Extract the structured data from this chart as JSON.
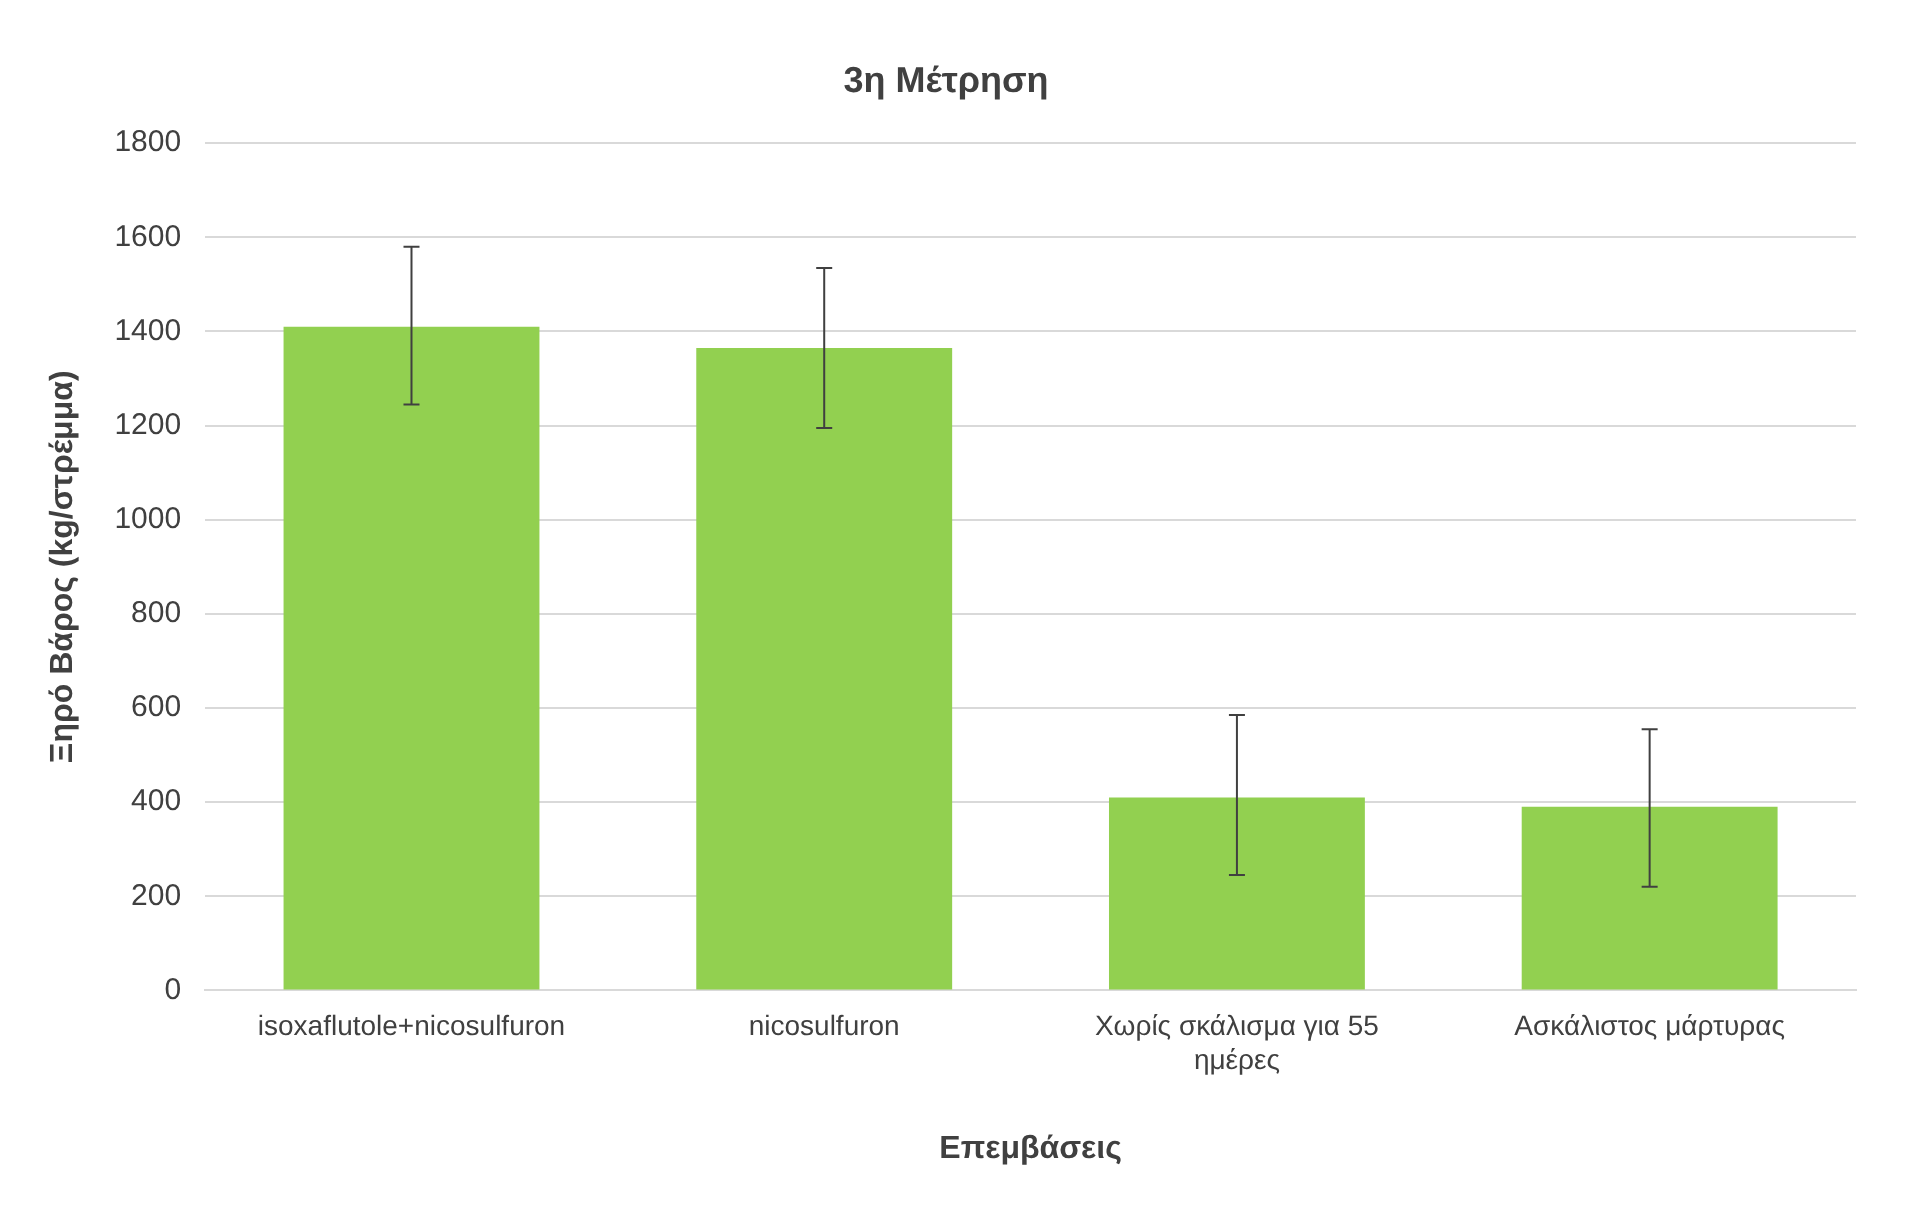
{
  "chart_data": {
    "type": "bar",
    "title": "3η Μέτρηση",
    "xlabel": "Επεμβάσεις",
    "ylabel": "Ξηρό Βάρος (kg/στρέμμα)",
    "categories": [
      "isoxaflutole+nicosulfuron",
      "nicosulfuron",
      "Χωρίς σκάλισμα για 55 ημέρες",
      "Ασκάλιστος μάρτυρας"
    ],
    "values": [
      1410,
      1365,
      410,
      390
    ],
    "errors": [
      [
        1245,
        1580
      ],
      [
        1195,
        1535
      ],
      [
        245,
        585
      ],
      [
        220,
        555
      ]
    ],
    "color": "#92d050",
    "ylim": [
      0,
      1800
    ],
    "yticks": [
      0,
      200,
      400,
      600,
      800,
      1000,
      1200,
      1400,
      1600,
      1800
    ],
    "grid": "y",
    "legend": false
  }
}
